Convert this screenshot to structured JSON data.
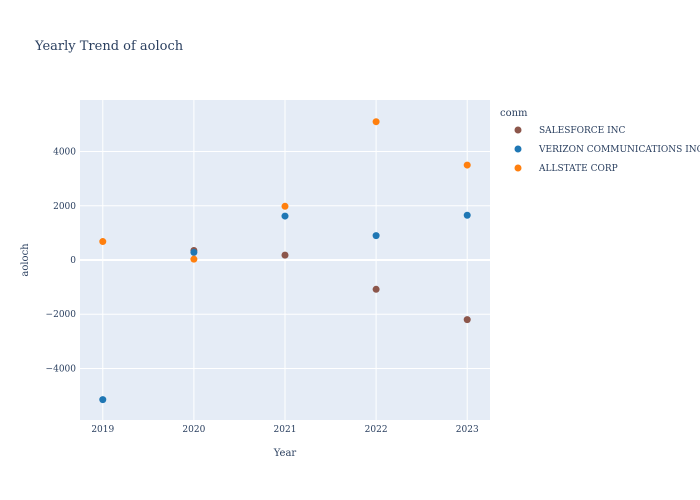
{
  "chart_data": {
    "type": "scatter",
    "title": "Yearly Trend of aoloch",
    "xlabel": "Year",
    "ylabel": "aoloch",
    "x": [
      2019,
      2020,
      2021,
      2022,
      2023
    ],
    "xlim": [
      2018.75,
      2023.25
    ],
    "ylim": [
      -5900,
      5900
    ],
    "yticks": [
      -4000,
      -2000,
      0,
      2000,
      4000
    ],
    "ytick_labels": [
      "−4000",
      "−2000",
      "0",
      "2000",
      "4000"
    ],
    "grid": true,
    "legend_title": "conm",
    "legend_position": "right",
    "series": [
      {
        "name": "SALESFORCE INC",
        "color": "#8c564b",
        "values": [
          null,
          350,
          180,
          -1080,
          -2200
        ]
      },
      {
        "name": "VERIZON COMMUNICATIONS INC",
        "color": "#1f77b4",
        "values": [
          -5150,
          280,
          1620,
          900,
          1650
        ]
      },
      {
        "name": "ALLSTATE CORP",
        "color": "#ff7f0e",
        "values": [
          680,
          30,
          1980,
          5100,
          3500
        ]
      }
    ]
  }
}
